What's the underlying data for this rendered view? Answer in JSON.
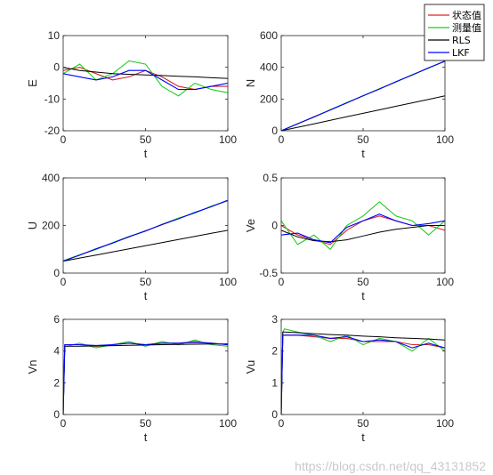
{
  "legend": {
    "placement": "top-right",
    "entries": [
      {
        "label": "状态值",
        "color": "#d62728"
      },
      {
        "label": "测量值",
        "color": "#22cc22"
      },
      {
        "label": "RLS",
        "color": "#000000"
      },
      {
        "label": "LKF",
        "color": "#0000ff"
      }
    ]
  },
  "watermark": "https://blog.csdn.net/qq_43131852",
  "chart_data": [
    {
      "type": "line",
      "ylabel": "E",
      "xlabel": "t",
      "xlim": [
        0,
        100
      ],
      "ylim": [
        -20,
        10
      ],
      "xticks": [
        "0",
        "50",
        "100"
      ],
      "yticks": [
        "-20",
        "-10",
        "0",
        "10"
      ],
      "x": [
        0,
        10,
        20,
        30,
        40,
        50,
        60,
        70,
        80,
        90,
        100
      ],
      "series": [
        {
          "name": "状态值",
          "values": [
            -1,
            0,
            -2,
            -4,
            -3,
            -1,
            -3,
            -6,
            -7,
            -6,
            -6
          ]
        },
        {
          "name": "测量值",
          "values": [
            -2,
            1,
            -4,
            -2,
            2,
            1,
            -6,
            -9,
            -5,
            -7,
            -8
          ]
        },
        {
          "name": "RLS",
          "values": [
            0,
            -1,
            -1.5,
            -2,
            -2.2,
            -2.4,
            -2.6,
            -2.8,
            -3,
            -3.3,
            -3.5
          ]
        },
        {
          "name": "LKF",
          "values": [
            -2,
            -3,
            -4,
            -3,
            -1,
            -1,
            -4,
            -7,
            -7,
            -6,
            -5
          ]
        }
      ]
    },
    {
      "type": "line",
      "ylabel": "N",
      "xlabel": "t",
      "xlim": [
        0,
        100
      ],
      "ylim": [
        0,
        600
      ],
      "xticks": [
        "0",
        "50",
        "100"
      ],
      "yticks": [
        "0",
        "200",
        "400",
        "600"
      ],
      "x": [
        0,
        10,
        20,
        30,
        40,
        50,
        60,
        70,
        80,
        90,
        100
      ],
      "series": [
        {
          "name": "状态值",
          "values": [
            0,
            44,
            88,
            132,
            176,
            220,
            264,
            308,
            352,
            396,
            440
          ]
        },
        {
          "name": "测量值",
          "values": [
            0,
            45,
            86,
            133,
            178,
            219,
            266,
            306,
            354,
            394,
            441
          ]
        },
        {
          "name": "RLS",
          "values": [
            0,
            22,
            44,
            66,
            88,
            110,
            132,
            154,
            176,
            198,
            220
          ]
        },
        {
          "name": "LKF",
          "values": [
            0,
            43,
            87,
            131,
            175,
            221,
            263,
            309,
            351,
            397,
            438
          ]
        }
      ]
    },
    {
      "type": "line",
      "ylabel": "U",
      "xlabel": "t",
      "xlim": [
        0,
        100
      ],
      "ylim": [
        0,
        400
      ],
      "xticks": [
        "0",
        "50",
        "100"
      ],
      "yticks": [
        "0",
        "200",
        "400"
      ],
      "x": [
        0,
        10,
        20,
        30,
        40,
        50,
        60,
        70,
        80,
        90,
        100
      ],
      "series": [
        {
          "name": "状态值",
          "values": [
            50,
            76,
            101,
            127,
            152,
            178,
            203,
            229,
            254,
            280,
            305
          ]
        },
        {
          "name": "测量值",
          "values": [
            52,
            77,
            99,
            128,
            154,
            176,
            205,
            231,
            252,
            282,
            303
          ]
        },
        {
          "name": "RLS",
          "values": [
            50,
            63,
            76,
            89,
            102,
            115,
            128,
            141,
            154,
            167,
            180
          ]
        },
        {
          "name": "LKF",
          "values": [
            50,
            75,
            102,
            126,
            153,
            177,
            204,
            228,
            255,
            279,
            306
          ]
        }
      ]
    },
    {
      "type": "line",
      "ylabel": "Ve",
      "xlabel": "t",
      "xlim": [
        0,
        100
      ],
      "ylim": [
        -0.5,
        0.5
      ],
      "xticks": [
        "0",
        "50",
        "100"
      ],
      "yticks": [
        "-0.5",
        "0",
        "0.5"
      ],
      "x": [
        0,
        10,
        20,
        30,
        40,
        50,
        60,
        70,
        80,
        90,
        100
      ],
      "series": [
        {
          "name": "状态值",
          "values": [
            0.0,
            -0.1,
            -0.15,
            -0.2,
            -0.05,
            0.05,
            0.1,
            0.05,
            0.0,
            0.0,
            -0.05
          ]
        },
        {
          "name": "测量值",
          "values": [
            0.05,
            -0.2,
            -0.1,
            -0.25,
            0.0,
            0.1,
            0.25,
            0.1,
            0.05,
            -0.1,
            0.05
          ]
        },
        {
          "name": "RLS",
          "values": [
            -0.05,
            -0.12,
            -0.16,
            -0.17,
            -0.15,
            -0.11,
            -0.07,
            -0.04,
            -0.02,
            0.0,
            0.0
          ]
        },
        {
          "name": "LKF",
          "values": [
            -0.1,
            -0.08,
            -0.15,
            -0.18,
            -0.02,
            0.05,
            0.12,
            0.05,
            0.0,
            0.02,
            0.05
          ]
        }
      ]
    },
    {
      "type": "line",
      "ylabel": "Vn",
      "xlabel": "t",
      "xlim": [
        0,
        100
      ],
      "ylim": [
        0,
        6
      ],
      "xticks": [
        "0",
        "50",
        "100"
      ],
      "yticks": [
        "0",
        "2",
        "4",
        "6"
      ],
      "x": [
        0,
        1,
        2,
        10,
        20,
        30,
        40,
        50,
        60,
        70,
        80,
        90,
        100
      ],
      "series": [
        {
          "name": "状态值",
          "values": [
            0,
            4.4,
            4.4,
            4.4,
            4.3,
            4.4,
            4.5,
            4.4,
            4.5,
            4.5,
            4.6,
            4.5,
            4.4
          ]
        },
        {
          "name": "测量值",
          "values": [
            0,
            4.3,
            4.3,
            4.5,
            4.2,
            4.4,
            4.6,
            4.3,
            4.6,
            4.4,
            4.7,
            4.4,
            4.3
          ]
        },
        {
          "name": "RLS",
          "values": [
            0,
            4.3,
            4.3,
            4.3,
            4.32,
            4.34,
            4.36,
            4.38,
            4.4,
            4.42,
            4.43,
            4.44,
            4.45
          ]
        },
        {
          "name": "LKF",
          "values": [
            0,
            4.4,
            4.4,
            4.4,
            4.35,
            4.4,
            4.5,
            4.4,
            4.5,
            4.5,
            4.55,
            4.5,
            4.4
          ]
        }
      ]
    },
    {
      "type": "line",
      "ylabel": "Vu",
      "xlabel": "t",
      "xlim": [
        0,
        100
      ],
      "ylim": [
        0,
        3
      ],
      "xticks": [
        "0",
        "50",
        "100"
      ],
      "yticks": [
        "0",
        "1",
        "2",
        "3"
      ],
      "x": [
        0,
        1,
        2,
        10,
        20,
        30,
        40,
        50,
        60,
        70,
        80,
        90,
        100
      ],
      "series": [
        {
          "name": "状态值",
          "values": [
            0,
            2.5,
            2.5,
            2.5,
            2.45,
            2.4,
            2.4,
            2.3,
            2.3,
            2.3,
            2.2,
            2.2,
            2.1
          ]
        },
        {
          "name": "测量值",
          "values": [
            0,
            2.6,
            2.7,
            2.6,
            2.5,
            2.3,
            2.5,
            2.2,
            2.4,
            2.3,
            2.0,
            2.4,
            2.0
          ]
        },
        {
          "name": "RLS",
          "values": [
            0,
            2.6,
            2.6,
            2.58,
            2.55,
            2.52,
            2.5,
            2.47,
            2.45,
            2.42,
            2.4,
            2.38,
            2.35
          ]
        },
        {
          "name": "LKF",
          "values": [
            0,
            2.5,
            2.5,
            2.5,
            2.5,
            2.4,
            2.45,
            2.3,
            2.35,
            2.3,
            2.1,
            2.25,
            2.1
          ]
        }
      ]
    }
  ]
}
